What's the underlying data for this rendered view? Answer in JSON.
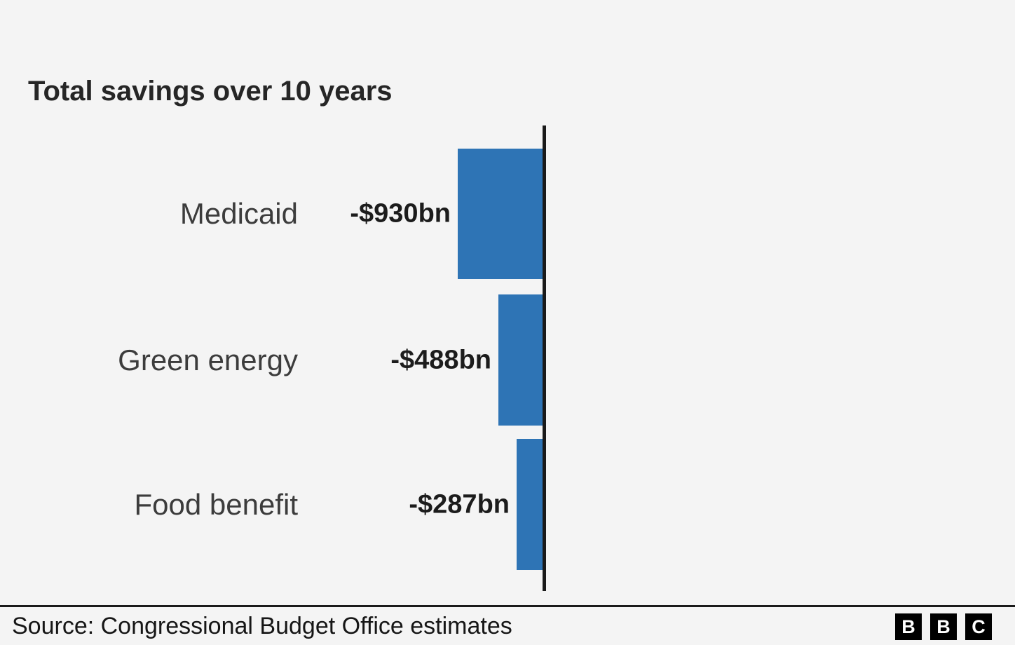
{
  "chart": {
    "title": "Total savings over 10 years"
  },
  "chart_data": {
    "type": "bar",
    "orientation": "horizontal",
    "title": "Total savings over 10 years",
    "categories": [
      "Medicaid",
      "Green energy",
      "Food benefit"
    ],
    "values": [
      -930,
      -488,
      -287
    ],
    "data_labels": [
      "-$930bn",
      "-$488bn",
      "-$287bn"
    ],
    "unit": "billions of US dollars",
    "xlabel": "",
    "ylabel": "",
    "xlim": [
      -930,
      0
    ],
    "grid": false,
    "legend": false,
    "baseline": "zero axis drawn as vertical line on right, bars extend left (negative values)"
  },
  "footer": {
    "source": "Source: Congressional Budget Office estimates",
    "logo_letters": [
      "B",
      "B",
      "C"
    ]
  },
  "colors": {
    "bar": "#2e74b5",
    "axis": "#1a1a1a",
    "background": "#f4f4f4",
    "title_text": "#262626",
    "category_text": "#3c3c3c",
    "value_text": "#1c1c1c",
    "logo_bg": "#000000",
    "logo_text": "#ffffff"
  }
}
